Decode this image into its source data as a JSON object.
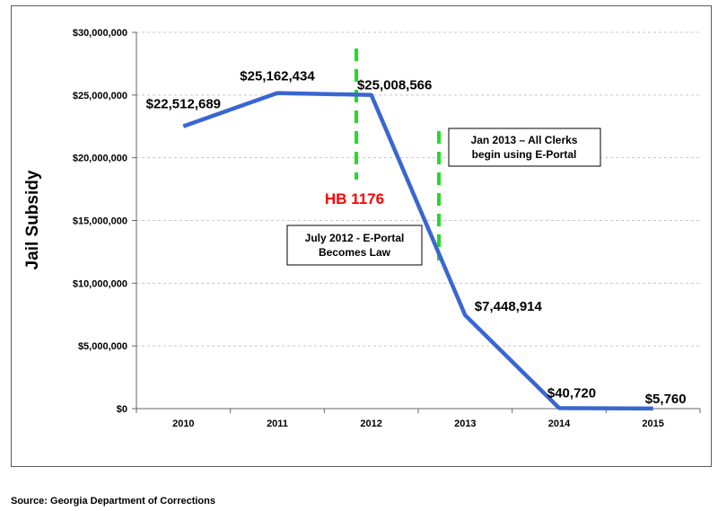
{
  "chart_data": {
    "type": "line",
    "ylabel": "Jail Subsidy",
    "categories": [
      "2010",
      "2011",
      "2012",
      "2013",
      "2014",
      "2015"
    ],
    "ylim": [
      0,
      30000000
    ],
    "yticks": [
      0,
      5000000,
      10000000,
      15000000,
      20000000,
      25000000,
      30000000
    ],
    "ytick_labels": [
      "$0",
      "$5,000,000",
      "$10,000,000",
      "$15,000,000",
      "$20,000,000",
      "$25,000,000",
      "$30,000,000"
    ],
    "grid": true,
    "series": [
      {
        "values": [
          22512689,
          25162434,
          25008566,
          7448914,
          40720,
          5760
        ],
        "data_labels": [
          "$22,512,689",
          "$25,162,434",
          "$25,008,566",
          "$7,448,914",
          "$40,720",
          "$5,760"
        ],
        "color": "#3a66d1"
      }
    ],
    "annotations": [
      {
        "text": "HB 1176",
        "color": "#ff0000"
      },
      {
        "text": "July 2012 - E-Portal Becomes Law",
        "lines": [
          "July 2012 - E-Portal",
          "Becomes Law"
        ]
      },
      {
        "text": "Jan 2013 – All Clerks begin using E-Portal",
        "lines": [
          "Jan 2013 – All Clerks",
          "begin using E-Portal"
        ]
      }
    ],
    "marker_color": "#22dd22"
  },
  "source": "Source: Georgia Department of Corrections"
}
